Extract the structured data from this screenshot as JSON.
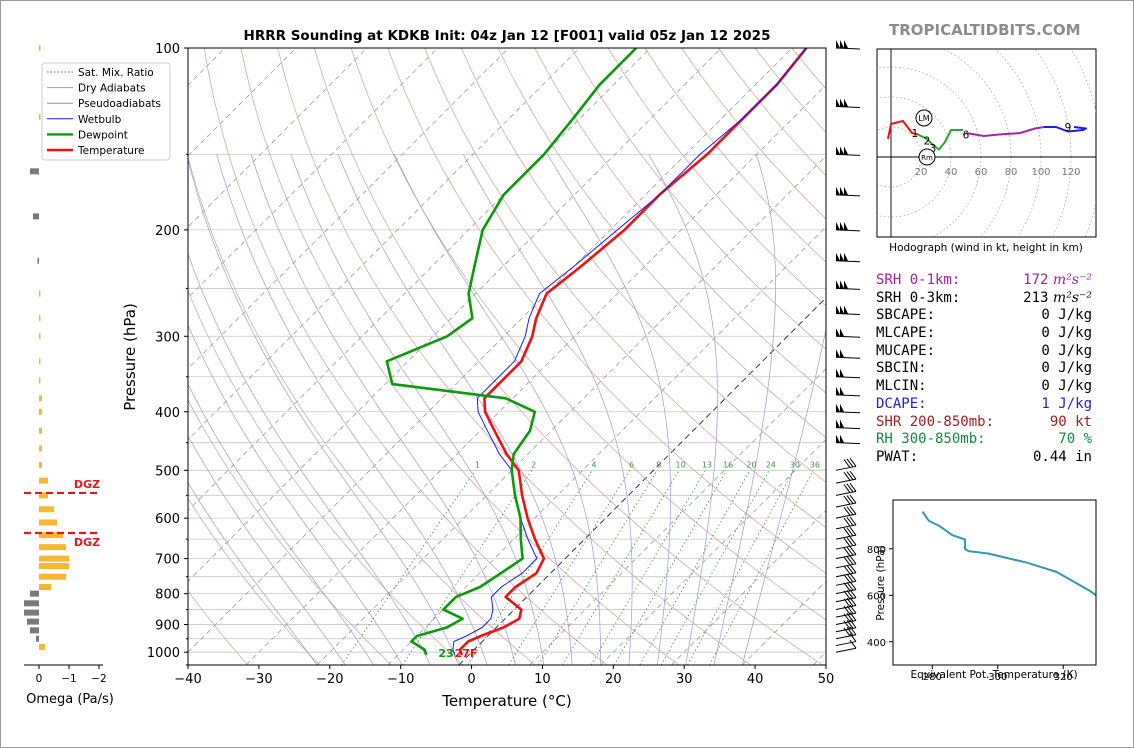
{
  "brand": "TROPICALTIDBITS.COM",
  "skewt": {
    "title": "HRRR Sounding at KDKB Init: 04z Jan 12 [F001] valid 05z Jan 12 2025",
    "xlabel": "Temperature (°C)",
    "ylabel": "Pressure (hPa)",
    "x_ticks": [
      "−40",
      "−30",
      "−20",
      "−10",
      "0",
      "10",
      "20",
      "30",
      "40",
      "50"
    ],
    "y_ticks": [
      "100",
      "200",
      "300",
      "400",
      "500",
      "600",
      "700",
      "800",
      "900",
      "1000"
    ],
    "surface_dewpoint": "23",
    "surface_temperature": "27F",
    "mixing_ratio_labels": [
      "1",
      "2",
      "4",
      "6",
      "8",
      "10",
      "13",
      "16",
      "20",
      "24",
      "30",
      "36"
    ],
    "legend": [
      {
        "label": "Sat. Mix. Ratio",
        "color": "#3a9a3a",
        "style": "dotted"
      },
      {
        "label": "Dry Adiabats",
        "color": "#d08a8a",
        "style": "solid"
      },
      {
        "label": "Pseudoadiabats",
        "color": "#8a8ad0",
        "style": "solid"
      },
      {
        "label": "Wetbulb",
        "color": "#1a1aee",
        "style": "solid"
      },
      {
        "label": "Dewpoint",
        "color": "#0a9a0a",
        "style": "solid"
      },
      {
        "label": "Temperature",
        "color": "#ee1111",
        "style": "solid"
      }
    ]
  },
  "omega": {
    "xlabel": "Omega (Pa/s)",
    "x_ticks": [
      "0",
      "−1",
      "−2"
    ],
    "dgz_label": "DGZ"
  },
  "hodograph": {
    "caption": "Hodograph (wind in kt, height in km)",
    "ring_labels": [
      "20",
      "40",
      "60",
      "80",
      "100",
      "120"
    ],
    "height_labels": [
      "1",
      "2",
      "3",
      "6",
      "9"
    ],
    "markers": [
      "LM",
      "Rm"
    ]
  },
  "parameters": [
    {
      "label": "SRH 0-1km:",
      "value": "172",
      "unit": "m²s⁻²",
      "color": "#a020a0"
    },
    {
      "label": "SRH 0-3km:",
      "value": "213",
      "unit": "m²s⁻²",
      "color": "#000000"
    },
    {
      "label": "SBCAPE:",
      "value": "0 J/kg",
      "unit": "",
      "color": "#000000"
    },
    {
      "label": "MLCAPE:",
      "value": "0 J/kg",
      "unit": "",
      "color": "#000000"
    },
    {
      "label": "MUCAPE:",
      "value": "0 J/kg",
      "unit": "",
      "color": "#000000"
    },
    {
      "label": "SBCIN:",
      "value": "0 J/kg",
      "unit": "",
      "color": "#000000"
    },
    {
      "label": "MLCIN:",
      "value": "0 J/kg",
      "unit": "",
      "color": "#000000"
    },
    {
      "label": "DCAPE:",
      "value": "1 J/kg",
      "unit": "",
      "color": "#2222cc"
    },
    {
      "label": "SHR 200-850mb:",
      "value": "90 kt",
      "unit": "",
      "color": "#a02020"
    },
    {
      "label": "RH 300-850mb:",
      "value": "70 %",
      "unit": "",
      "color": "#118844"
    },
    {
      "label": "PWAT:",
      "value": "0.44 in",
      "unit": "",
      "color": "#000000"
    }
  ],
  "theta_e_panel": {
    "xlabel": "Equivalent Pot. Temperature (K)",
    "ylabel": "Pressure (hPa)",
    "x_ticks": [
      "280",
      "300",
      "320"
    ],
    "y_ticks": [
      "400",
      "600",
      "800"
    ]
  },
  "chart_data": [
    {
      "type": "line",
      "title": "HRRR Sounding at KDKB Init: 04z Jan 12 [F001] valid 05z Jan 12 2025",
      "xlabel": "Temperature (°C)",
      "ylabel": "Pressure (hPa)",
      "xlim": [
        -40,
        50
      ],
      "ylim": [
        1050,
        100
      ],
      "y_scale": "log",
      "x_skew": "skewed temperature axis",
      "legend_position": "top-left",
      "series": [
        {
          "name": "Temperature",
          "color": "#ee1111",
          "points": [
            [
              100,
              -38
            ],
            [
              115,
              -37
            ],
            [
              130,
              -37
            ],
            [
              150,
              -37
            ],
            [
              175,
              -38
            ],
            [
              200,
              -38
            ],
            [
              230,
              -39
            ],
            [
              255,
              -40
            ],
            [
              280,
              -38
            ],
            [
              300,
              -36
            ],
            [
              330,
              -34
            ],
            [
              360,
              -34
            ],
            [
              380,
              -34
            ],
            [
              400,
              -32
            ],
            [
              430,
              -28
            ],
            [
              470,
              -23
            ],
            [
              500,
              -19
            ],
            [
              550,
              -15
            ],
            [
              600,
              -11
            ],
            [
              650,
              -7
            ],
            [
              700,
              -3
            ],
            [
              740,
              -2
            ],
            [
              780,
              -3
            ],
            [
              810,
              -3
            ],
            [
              850,
              1
            ],
            [
              880,
              2
            ],
            [
              910,
              1
            ],
            [
              940,
              -1
            ],
            [
              960,
              -2
            ],
            [
              990,
              -2
            ],
            [
              1010,
              -1
            ]
          ]
        },
        {
          "name": "Wetbulb",
          "color": "#1a1aee",
          "points": [
            [
              100,
              -38
            ],
            [
              115,
              -37
            ],
            [
              130,
              -37
            ],
            [
              150,
              -38
            ],
            [
              175,
              -38
            ],
            [
              200,
              -39
            ],
            [
              230,
              -40
            ],
            [
              255,
              -41
            ],
            [
              280,
              -39
            ],
            [
              300,
              -37
            ],
            [
              330,
              -35
            ],
            [
              360,
              -35
            ],
            [
              380,
              -35
            ],
            [
              400,
              -33
            ],
            [
              430,
              -29
            ],
            [
              470,
              -24
            ],
            [
              500,
              -20
            ],
            [
              550,
              -16
            ],
            [
              600,
              -12
            ],
            [
              650,
              -8
            ],
            [
              700,
              -4
            ],
            [
              740,
              -4
            ],
            [
              780,
              -5
            ],
            [
              810,
              -5
            ],
            [
              850,
              -3
            ],
            [
              880,
              -2
            ],
            [
              910,
              -2
            ],
            [
              940,
              -3
            ],
            [
              960,
              -4
            ],
            [
              990,
              -3
            ],
            [
              1010,
              -2
            ]
          ]
        },
        {
          "name": "Dewpoint",
          "color": "#0a9a0a",
          "points": [
            [
              100,
              -62
            ],
            [
              115,
              -62
            ],
            [
              130,
              -61
            ],
            [
              150,
              -60
            ],
            [
              175,
              -60
            ],
            [
              200,
              -58
            ],
            [
              230,
              -54
            ],
            [
              255,
              -51
            ],
            [
              280,
              -47
            ],
            [
              300,
              -48
            ],
            [
              330,
              -53
            ],
            [
              360,
              -49
            ],
            [
              380,
              -31
            ],
            [
              400,
              -25
            ],
            [
              430,
              -23
            ],
            [
              470,
              -22
            ],
            [
              500,
              -20
            ],
            [
              550,
              -16
            ],
            [
              600,
              -12
            ],
            [
              650,
              -9
            ],
            [
              700,
              -6
            ],
            [
              740,
              -7
            ],
            [
              780,
              -8
            ],
            [
              810,
              -10
            ],
            [
              850,
              -10
            ],
            [
              880,
              -6
            ],
            [
              910,
              -7
            ],
            [
              940,
              -10
            ],
            [
              960,
              -10
            ],
            [
              990,
              -7
            ],
            [
              1010,
              -6
            ]
          ]
        }
      ]
    },
    {
      "type": "bar",
      "xlabel": "Omega (Pa/s)",
      "xlim": [
        0.3,
        -2.2
      ],
      "ylim": [
        1050,
        100
      ],
      "bars": [
        [
          100,
          -0.03
        ],
        [
          130,
          -0.03
        ],
        [
          160,
          0.3
        ],
        [
          190,
          0.2
        ],
        [
          225,
          0.05
        ],
        [
          255,
          -0.05
        ],
        [
          280,
          -0.05
        ],
        [
          300,
          -0.05
        ],
        [
          330,
          -0.05
        ],
        [
          355,
          -0.05
        ],
        [
          380,
          -0.1
        ],
        [
          400,
          -0.1
        ],
        [
          430,
          -0.1
        ],
        [
          460,
          -0.1
        ],
        [
          490,
          -0.1
        ],
        [
          520,
          -0.3
        ],
        [
          550,
          -0.3
        ],
        [
          580,
          -0.5
        ],
        [
          610,
          -0.6
        ],
        [
          640,
          -0.8
        ],
        [
          670,
          -0.9
        ],
        [
          700,
          -1.0
        ],
        [
          720,
          -1.0
        ],
        [
          750,
          -0.9
        ],
        [
          780,
          -0.4
        ],
        [
          800,
          0.3
        ],
        [
          830,
          0.5
        ],
        [
          860,
          0.5
        ],
        [
          890,
          0.4
        ],
        [
          920,
          0.3
        ],
        [
          950,
          0.1
        ],
        [
          980,
          -0.2
        ]
      ],
      "dgz_levels_hpa": [
        545,
        635
      ],
      "colors": {
        "negative": "#f7b733",
        "positive": "#7a7a7a",
        "dgz": "#e0191d"
      }
    },
    {
      "type": "line",
      "title": "Hodograph",
      "xlabel": "kt",
      "ring_step_kt": 20,
      "ring_max_kt": 120,
      "series": [
        {
          "name": "0-1 km",
          "color": "#ee1111",
          "points": [
            [
              -2,
              12
            ],
            [
              0,
              22
            ],
            [
              8,
              24
            ],
            [
              14,
              16
            ],
            [
              18,
              15
            ]
          ]
        },
        {
          "name": "1-3 km",
          "color": "#22aa22",
          "points": [
            [
              18,
              15
            ],
            [
              24,
              12
            ],
            [
              28,
              8
            ],
            [
              32,
              5
            ],
            [
              36,
              10
            ],
            [
              40,
              18
            ],
            [
              48,
              18
            ]
          ]
        },
        {
          "name": "3-6 km",
          "color": "#aa22aa",
          "points": [
            [
              50,
              16
            ],
            [
              62,
              14
            ],
            [
              72,
              15
            ],
            [
              86,
              16
            ],
            [
              96,
              19
            ],
            [
              102,
              20
            ]
          ]
        },
        {
          "name": "6-9 km",
          "color": "#1a1aee",
          "points": [
            [
              102,
              20
            ],
            [
              110,
              20
            ],
            [
              118,
              17
            ],
            [
              128,
              18
            ],
            [
              130,
              19
            ],
            [
              122,
              20
            ]
          ]
        }
      ],
      "markers": [
        {
          "label": "LM",
          "u": 22,
          "v": 26
        },
        {
          "label": "Rm",
          "u": 24,
          "v": 0
        }
      ]
    },
    {
      "type": "line",
      "title": "Equivalent Pot. Temperature",
      "xlabel": "Equivalent Pot. Temperature (K)",
      "ylabel": "Pressure (hPa)",
      "xlim": [
        268,
        330
      ],
      "ylim": [
        1010,
        300
      ],
      "series": [
        {
          "name": "theta-e",
          "color": "#3399b3",
          "points": [
            [
              300,
              334
            ],
            [
              310,
              340
            ],
            [
              320,
              352
            ],
            [
              330,
              356
            ],
            [
              340,
              351
            ],
            [
              360,
              348
            ],
            [
              380,
              343
            ],
            [
              390,
              340
            ],
            [
              400,
              339
            ],
            [
              430,
              339
            ],
            [
              460,
              338
            ],
            [
              500,
              337
            ],
            [
              560,
              334
            ],
            [
              620,
              328
            ],
            [
              700,
              318
            ],
            [
              740,
              309
            ],
            [
              760,
              303
            ],
            [
              780,
              297
            ],
            [
              790,
              291
            ],
            [
              800,
              290
            ],
            [
              820,
              290
            ],
            [
              840,
              290
            ],
            [
              860,
              286
            ],
            [
              880,
              284
            ],
            [
              900,
              282
            ],
            [
              920,
              279
            ],
            [
              940,
              278
            ],
            [
              960,
              277
            ]
          ]
        }
      ]
    }
  ]
}
